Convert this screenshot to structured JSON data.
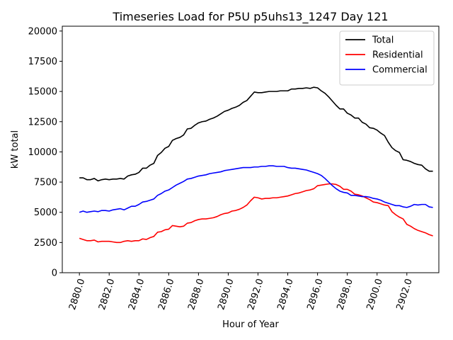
{
  "chart_data": {
    "type": "line",
    "title": "Timeseries Load for P5U p5uhs13_1247  Day 121",
    "xlabel": "Hour of Year",
    "ylabel": "kW total",
    "xlim": [
      2878.85,
      2904.15
    ],
    "ylim": [
      0,
      20400
    ],
    "x_ticks": [
      2880,
      2882,
      2884,
      2886,
      2888,
      2890,
      2892,
      2894,
      2896,
      2898,
      2900,
      2902
    ],
    "x_tick_labels": [
      "2880.0",
      "2882.0",
      "2884.0",
      "2886.0",
      "2888.0",
      "2890.0",
      "2892.0",
      "2894.0",
      "2896.0",
      "2898.0",
      "2900.0",
      "2902.0"
    ],
    "y_ticks": [
      0,
      2500,
      5000,
      7500,
      10000,
      12500,
      15000,
      17500,
      20000
    ],
    "y_tick_labels": [
      "0",
      "2500",
      "5000",
      "7500",
      "10000",
      "12500",
      "15000",
      "17500",
      "20000"
    ],
    "legend_position": "top-right",
    "x": [
      2880,
      2880.25,
      2880.5,
      2880.75,
      2881,
      2881.25,
      2881.5,
      2881.75,
      2882,
      2882.25,
      2882.5,
      2882.75,
      2883,
      2883.25,
      2883.5,
      2883.75,
      2884,
      2884.25,
      2884.5,
      2884.75,
      2885,
      2885.25,
      2885.5,
      2885.75,
      2886,
      2886.25,
      2886.5,
      2886.75,
      2887,
      2887.25,
      2887.5,
      2887.75,
      2888,
      2888.25,
      2888.5,
      2888.75,
      2889,
      2889.25,
      2889.5,
      2889.75,
      2890,
      2890.25,
      2890.5,
      2890.75,
      2891,
      2891.25,
      2891.5,
      2891.75,
      2892,
      2892.25,
      2892.5,
      2892.75,
      2893,
      2893.25,
      2893.5,
      2893.75,
      2894,
      2894.25,
      2894.5,
      2894.75,
      2895,
      2895.25,
      2895.5,
      2895.75,
      2896,
      2896.25,
      2896.5,
      2896.75,
      2897,
      2897.25,
      2897.5,
      2897.75,
      2898,
      2898.25,
      2898.5,
      2898.75,
      2899,
      2899.25,
      2899.5,
      2899.75,
      2900,
      2900.25,
      2900.5,
      2900.75,
      2901,
      2901.25,
      2901.5,
      2901.75,
      2902,
      2902.25,
      2902.5,
      2902.75,
      2903,
      2903.25,
      2903.5,
      2903.75
    ],
    "series": [
      {
        "name": "Total",
        "color": "#000000",
        "values": [
          7850,
          7850,
          7700,
          7700,
          7800,
          7600,
          7700,
          7750,
          7700,
          7750,
          7750,
          7800,
          7750,
          8000,
          8100,
          8150,
          8300,
          8650,
          8650,
          8900,
          9050,
          9700,
          9950,
          10300,
          10450,
          10950,
          11100,
          11200,
          11400,
          11900,
          11950,
          12200,
          12400,
          12500,
          12550,
          12700,
          12800,
          12950,
          13150,
          13350,
          13450,
          13600,
          13700,
          13850,
          14100,
          14250,
          14600,
          14950,
          14900,
          14900,
          14950,
          15000,
          15000,
          15000,
          15050,
          15050,
          15050,
          15200,
          15200,
          15250,
          15250,
          15300,
          15250,
          15350,
          15300,
          15050,
          14850,
          14550,
          14200,
          13850,
          13550,
          13550,
          13200,
          13050,
          12800,
          12800,
          12450,
          12300,
          12000,
          11950,
          11800,
          11550,
          11350,
          10800,
          10350,
          10100,
          9950,
          9350,
          9300,
          9200,
          9050,
          8950,
          8900,
          8600,
          8400,
          8400
        ]
      },
      {
        "name": "Residential",
        "color": "#ff0000",
        "values": [
          2850,
          2750,
          2650,
          2650,
          2700,
          2550,
          2600,
          2600,
          2600,
          2550,
          2500,
          2500,
          2600,
          2650,
          2600,
          2650,
          2650,
          2800,
          2750,
          2900,
          3000,
          3350,
          3400,
          3550,
          3600,
          3900,
          3850,
          3800,
          3850,
          4100,
          4150,
          4300,
          4400,
          4450,
          4450,
          4500,
          4550,
          4650,
          4800,
          4900,
          4950,
          5100,
          5150,
          5250,
          5400,
          5600,
          5950,
          6250,
          6200,
          6100,
          6150,
          6150,
          6200,
          6200,
          6250,
          6300,
          6350,
          6450,
          6550,
          6600,
          6700,
          6800,
          6850,
          6950,
          7200,
          7250,
          7300,
          7350,
          7350,
          7300,
          7150,
          6900,
          6900,
          6750,
          6500,
          6450,
          6350,
          6200,
          6050,
          5850,
          5800,
          5700,
          5600,
          5550,
          5050,
          4800,
          4600,
          4450,
          4000,
          3850,
          3650,
          3500,
          3400,
          3300,
          3150,
          3050
        ]
      },
      {
        "name": "Commercial",
        "color": "#0000ff",
        "values": [
          5000,
          5100,
          5000,
          5050,
          5100,
          5050,
          5150,
          5150,
          5100,
          5200,
          5250,
          5300,
          5200,
          5350,
          5500,
          5500,
          5650,
          5850,
          5900,
          6000,
          6100,
          6400,
          6550,
          6750,
          6850,
          7050,
          7250,
          7400,
          7550,
          7750,
          7800,
          7900,
          8000,
          8050,
          8100,
          8200,
          8250,
          8300,
          8350,
          8450,
          8500,
          8550,
          8600,
          8650,
          8700,
          8700,
          8700,
          8750,
          8750,
          8800,
          8800,
          8850,
          8850,
          8800,
          8800,
          8800,
          8700,
          8650,
          8650,
          8600,
          8550,
          8500,
          8400,
          8300,
          8200,
          8050,
          7800,
          7500,
          7200,
          6950,
          6750,
          6650,
          6600,
          6400,
          6400,
          6350,
          6300,
          6300,
          6250,
          6150,
          6100,
          6000,
          5850,
          5750,
          5650,
          5550,
          5550,
          5450,
          5400,
          5500,
          5650,
          5600,
          5650,
          5650,
          5450,
          5400
        ]
      }
    ]
  }
}
